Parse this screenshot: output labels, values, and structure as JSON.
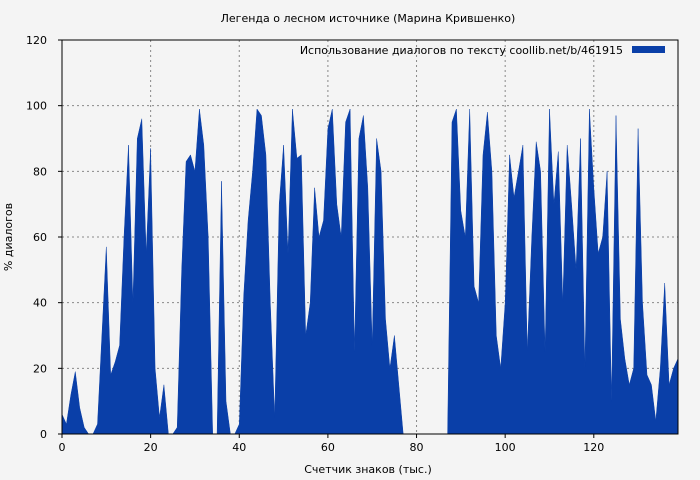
{
  "chart_data": {
    "type": "area",
    "title": "Легенда о лесном источнике (Марина Крившенко)",
    "xlabel": "Счетчик знаков (тыс.)",
    "ylabel": "% диалогов",
    "xlim": [
      0,
      139
    ],
    "ylim": [
      0,
      120
    ],
    "xticks": [
      0,
      20,
      40,
      60,
      80,
      100,
      120
    ],
    "yticks": [
      0,
      20,
      40,
      60,
      80,
      100,
      120
    ],
    "grid": true,
    "legend_position": "top-right",
    "series": [
      {
        "name": "Использование диалогов по тексту  coollib.net/b/461915",
        "color": "#0a3fa8",
        "x": [
          0,
          1,
          2,
          3,
          4,
          5,
          6,
          7,
          8,
          9,
          10,
          11,
          12,
          13,
          14,
          15,
          16,
          17,
          18,
          19,
          20,
          21,
          22,
          23,
          24,
          25,
          26,
          27,
          28,
          29,
          30,
          31,
          32,
          33,
          34,
          35,
          36,
          37,
          38,
          39,
          40,
          41,
          42,
          43,
          44,
          45,
          46,
          47,
          48,
          49,
          50,
          51,
          52,
          53,
          54,
          55,
          56,
          57,
          58,
          59,
          60,
          61,
          62,
          63,
          64,
          65,
          66,
          67,
          68,
          69,
          70,
          71,
          72,
          73,
          74,
          75,
          76,
          77,
          78,
          79,
          80,
          81,
          82,
          83,
          84,
          85,
          86,
          87,
          88,
          89,
          90,
          91,
          92,
          93,
          94,
          95,
          96,
          97,
          98,
          99,
          100,
          101,
          102,
          103,
          104,
          105,
          106,
          107,
          108,
          109,
          110,
          111,
          112,
          113,
          114,
          115,
          116,
          117,
          118,
          119,
          120,
          121,
          122,
          123,
          124,
          125,
          126,
          127,
          128,
          129,
          130,
          131,
          132,
          133,
          134,
          135,
          136,
          137,
          138,
          139
        ],
        "values": [
          6,
          3,
          12,
          19,
          8,
          2,
          0,
          0,
          3,
          30,
          57,
          18,
          22,
          27,
          60,
          88,
          40,
          90,
          96,
          55,
          87,
          20,
          5,
          15,
          0,
          0,
          2,
          50,
          83,
          85,
          80,
          99,
          88,
          60,
          0,
          0,
          77,
          10,
          0,
          0,
          3,
          42,
          65,
          80,
          99,
          97,
          85,
          40,
          5,
          70,
          88,
          55,
          99,
          84,
          85,
          30,
          40,
          75,
          60,
          65,
          93,
          99,
          70,
          60,
          95,
          99,
          25,
          90,
          97,
          75,
          27,
          90,
          80,
          35,
          20,
          30,
          15,
          0,
          0,
          0,
          0,
          0,
          0,
          0,
          0,
          0,
          0,
          0,
          95,
          99,
          68,
          60,
          99,
          45,
          40,
          85,
          98,
          80,
          30,
          20,
          40,
          85,
          72,
          80,
          88,
          25,
          60,
          89,
          80,
          25,
          99,
          70,
          86,
          40,
          88,
          70,
          50,
          90,
          20,
          99,
          75,
          55,
          60,
          80,
          10,
          97,
          35,
          23,
          15,
          20,
          93,
          40,
          18,
          15,
          4,
          20,
          46,
          15,
          20,
          23
        ]
      }
    ]
  }
}
